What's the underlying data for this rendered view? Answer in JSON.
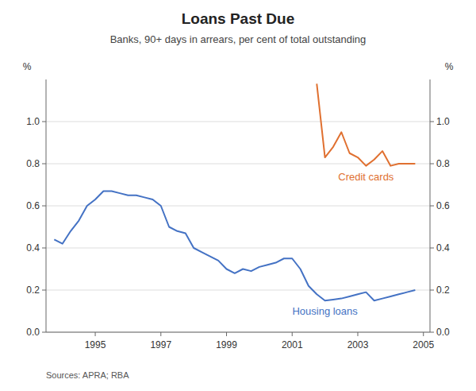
{
  "chart_data": {
    "type": "line",
    "title": "Loans Past Due",
    "subtitle": "Banks, 90+ days in arrears, per cent of total outstanding",
    "source": "Sources: APRA; RBA",
    "y_label": "%",
    "y2_label": "%",
    "xlim": [
      1993.5,
      2005.2
    ],
    "xticks": [
      1995,
      1997,
      1999,
      2001,
      2003,
      2005
    ],
    "ylim": [
      0.0,
      1.2
    ],
    "yticks": [
      {
        "value": 0.0,
        "label": "0.0"
      },
      0.2,
      0.4,
      0.6,
      0.8,
      {
        "value": 1.0,
        "label": "1.0"
      }
    ],
    "y2lim": [
      0.0,
      1.2
    ],
    "y2ticks": [
      {
        "value": 0.0,
        "label": "0.0"
      },
      0.2,
      0.4,
      0.6,
      0.8,
      {
        "value": 1.0,
        "label": "1.0"
      }
    ],
    "grid": true,
    "series": [
      {
        "name": "Housing loans",
        "color": "#4472C4",
        "x": [
          1993.75,
          1994.0,
          1994.25,
          1994.5,
          1994.75,
          1995.0,
          1995.25,
          1995.5,
          1995.75,
          1996.0,
          1996.25,
          1996.5,
          1996.75,
          1997.0,
          1997.25,
          1997.5,
          1997.75,
          1998.0,
          1998.25,
          1998.5,
          1998.75,
          1999.0,
          1999.25,
          1999.5,
          1999.75,
          2000.0,
          2000.25,
          2000.5,
          2000.75,
          2001.0,
          2001.25,
          2001.5,
          2001.75,
          2002.0,
          2002.25,
          2002.5,
          2002.75,
          2003.0,
          2003.25,
          2003.5,
          2003.75,
          2004.0,
          2004.25,
          2004.5,
          2004.75
        ],
        "values": [
          0.44,
          0.42,
          0.48,
          0.53,
          0.6,
          0.63,
          0.67,
          0.67,
          0.66,
          0.65,
          0.65,
          0.64,
          0.63,
          0.6,
          0.5,
          0.48,
          0.47,
          0.4,
          0.38,
          0.36,
          0.34,
          0.3,
          0.28,
          0.3,
          0.29,
          0.31,
          0.32,
          0.33,
          0.35,
          0.35,
          0.3,
          0.22,
          0.18,
          0.15,
          0.155,
          0.16,
          0.17,
          0.18,
          0.19,
          0.15,
          0.16,
          0.17,
          0.18,
          0.19,
          0.2
        ]
      },
      {
        "name": "Credit cards",
        "color": "#E07030",
        "x": [
          2001.75,
          2002.0,
          2002.25,
          2002.5,
          2002.75,
          2003.0,
          2003.25,
          2003.5,
          2003.75,
          2004.0,
          2004.25,
          2004.5,
          2004.75
        ],
        "values": [
          1.18,
          0.83,
          0.88,
          0.95,
          0.85,
          0.83,
          0.79,
          0.82,
          0.86,
          0.79,
          0.8,
          0.8,
          0.8
        ]
      }
    ]
  }
}
